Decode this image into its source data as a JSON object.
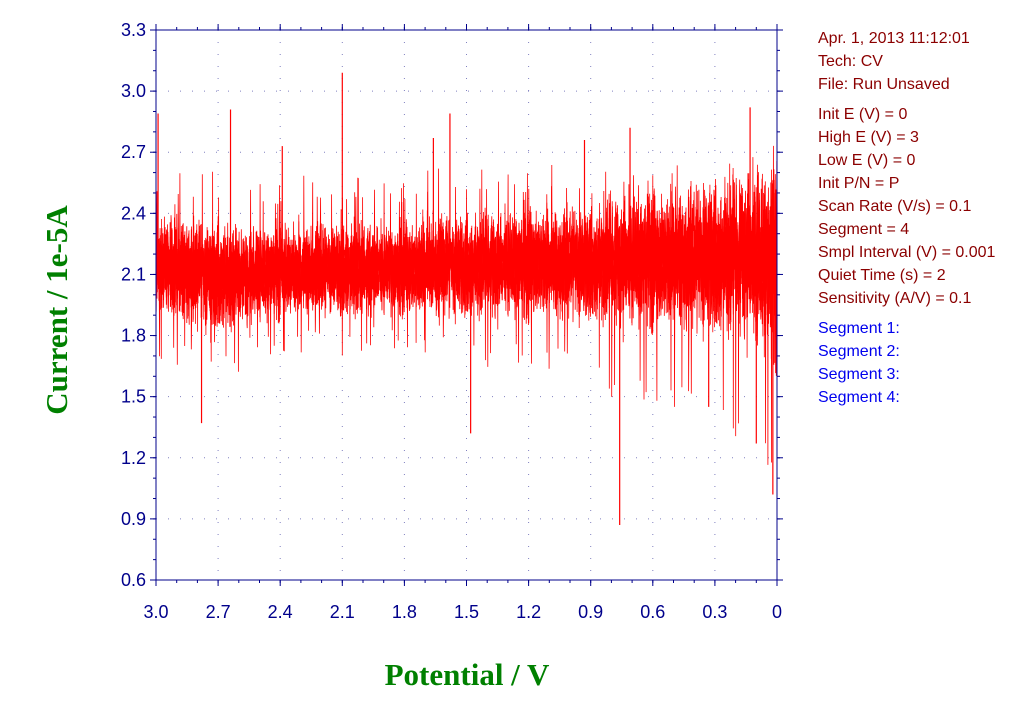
{
  "info": {
    "date": "Apr. 1, 2013   11:12:01",
    "tech": "Tech: CV",
    "file": "File: Run Unsaved",
    "params": [
      "Init E (V) = 0",
      "High E (V) = 3",
      "Low E (V) = 0",
      "Init P/N = P",
      "Scan Rate (V/s) = 0.1",
      "Segment = 4",
      "Smpl Interval (V) = 0.001",
      "Quiet Time (s) = 2",
      "Sensitivity (A/V) = 0.1"
    ],
    "segments": [
      "Segment 1:",
      "Segment 2:",
      "Segment 3:",
      "Segment 4:"
    ]
  },
  "colors": {
    "trace": "#ff0000",
    "axis": "#00008b",
    "label": "#008000",
    "info": "#8b0000",
    "segment": "#0000ee"
  },
  "chart_data": {
    "type": "line",
    "title": "",
    "xlabel": "Potential / V",
    "ylabel": "Current / 1e-5A",
    "xlim": [
      3.0,
      0.0
    ],
    "ylim": [
      0.6,
      3.3
    ],
    "x_inverted": true,
    "grid": "dotted",
    "xticks": [
      "3.0",
      "2.7",
      "2.4",
      "2.1",
      "1.8",
      "1.5",
      "1.2",
      "0.9",
      "0.6",
      "0.3",
      "0"
    ],
    "yticks": [
      "3.3",
      "3.0",
      "2.7",
      "2.4",
      "2.1",
      "1.8",
      "1.5",
      "1.2",
      "0.9",
      "0.6"
    ],
    "series": [
      {
        "x": [
          3.0,
          2.85,
          2.7,
          2.55,
          2.4,
          2.25,
          2.1,
          1.95,
          1.8,
          1.65,
          1.5,
          1.35,
          1.2,
          1.05,
          0.9,
          0.75,
          0.6,
          0.45,
          0.3,
          0.15,
          0.0
        ],
        "center": [
          2.15,
          2.12,
          2.1,
          2.09,
          2.11,
          2.12,
          2.13,
          2.12,
          2.12,
          2.14,
          2.15,
          2.15,
          2.15,
          2.16,
          2.16,
          2.17,
          2.17,
          2.18,
          2.2,
          2.2,
          2.15
        ],
        "low": [
          1.8,
          1.75,
          1.73,
          1.78,
          1.82,
          1.83,
          1.84,
          1.83,
          1.84,
          1.82,
          1.8,
          1.78,
          1.76,
          1.74,
          1.72,
          1.6,
          1.58,
          1.55,
          1.5,
          1.42,
          1.2
        ],
        "high": [
          2.48,
          2.45,
          2.46,
          2.44,
          2.43,
          2.45,
          2.46,
          2.44,
          2.44,
          2.48,
          2.5,
          2.48,
          2.49,
          2.5,
          2.48,
          2.48,
          2.48,
          2.5,
          2.52,
          2.52,
          2.55
        ],
        "spikes": [
          [
            2.1,
            3.09
          ],
          [
            2.99,
            2.89
          ],
          [
            2.64,
            2.91
          ],
          [
            1.58,
            2.89
          ],
          [
            0.13,
            2.92
          ],
          [
            0.71,
            2.82
          ],
          [
            0.93,
            2.76
          ],
          [
            0.76,
            0.87
          ],
          [
            0.02,
            1.02
          ],
          [
            2.78,
            1.37
          ],
          [
            1.48,
            1.32
          ],
          [
            0.33,
            1.45
          ],
          [
            0.1,
            1.27
          ],
          [
            2.39,
            2.73
          ],
          [
            1.66,
            2.77
          ]
        ]
      }
    ]
  }
}
